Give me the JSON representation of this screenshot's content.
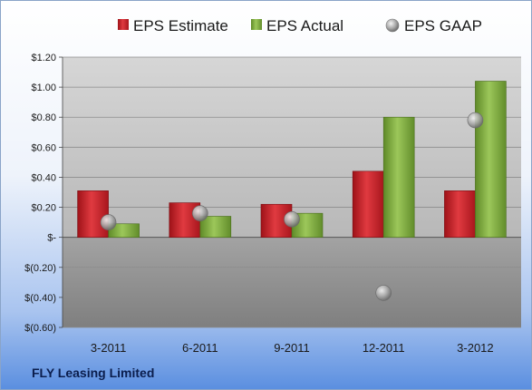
{
  "footer": {
    "company": "FLY Leasing Limited"
  },
  "colors": {
    "estimate": "#c8202a",
    "actual": "#7aa83a",
    "gaap": "#9a9a9a",
    "plot_positive_bg": "#bdbdbd",
    "plot_negative_bg": "#8f8f8f"
  },
  "chart_data": {
    "type": "bar",
    "categories": [
      "3-2011",
      "6-2011",
      "9-2011",
      "12-2011",
      "3-2012"
    ],
    "series": [
      {
        "name": "EPS Estimate",
        "type": "bar",
        "values": [
          0.31,
          0.23,
          0.22,
          0.44,
          0.31
        ]
      },
      {
        "name": "EPS Actual",
        "type": "bar",
        "values": [
          0.09,
          0.14,
          0.16,
          0.8,
          1.04
        ]
      },
      {
        "name": "EPS GAAP",
        "type": "scatter",
        "values": [
          0.1,
          0.16,
          0.12,
          -0.37,
          0.78
        ]
      }
    ],
    "ylim": [
      -0.6,
      1.2
    ],
    "yticks": [
      1.2,
      1.0,
      0.8,
      0.6,
      0.4,
      0.2,
      0,
      -0.2,
      -0.4,
      -0.6
    ],
    "ytick_labels": [
      "$1.20",
      "$1.00",
      "$0.80",
      "$0.60",
      "$0.40",
      "$0.20",
      "$-",
      "$(0.20)",
      "$(0.40)",
      "$(0.60)"
    ],
    "grid": true,
    "legend": "top-center"
  }
}
